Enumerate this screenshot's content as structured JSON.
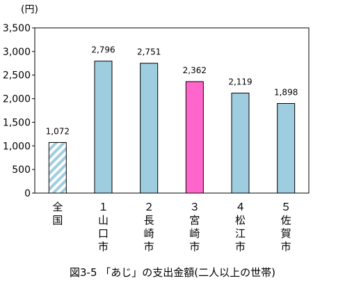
{
  "chart_data": {
    "type": "bar",
    "unit": "(円)",
    "caption": "図3-5 「あじ」の支出金額(二人以上の世帯)",
    "categories": [
      {
        "rank": "",
        "name": "全国"
      },
      {
        "rank": "１",
        "name": "山口市"
      },
      {
        "rank": "２",
        "name": "長崎市"
      },
      {
        "rank": "３",
        "name": "宮崎市"
      },
      {
        "rank": "４",
        "name": "松江市"
      },
      {
        "rank": "５",
        "name": "佐賀市"
      }
    ],
    "values": [
      1072,
      2796,
      2751,
      2362,
      2119,
      1898
    ],
    "value_labels": [
      "1,072",
      "2,796",
      "2,751",
      "2,362",
      "2,119",
      "1,898"
    ],
    "bar_styles": [
      "hatched-light-blue",
      "light-blue",
      "light-blue",
      "pink",
      "light-blue",
      "light-blue"
    ],
    "colors": {
      "bar": "#9fcde0",
      "highlight": "#ff66cc",
      "hatch": "#9fcde0"
    },
    "ylim": [
      0,
      3500
    ],
    "yticks": [
      0,
      500,
      1000,
      1500,
      2000,
      2500,
      3000,
      3500
    ],
    "ytick_labels": [
      "0",
      "500",
      "1,000",
      "1,500",
      "2,000",
      "2,500",
      "3,000",
      "3,500"
    ],
    "grid": false,
    "legend": "none"
  }
}
